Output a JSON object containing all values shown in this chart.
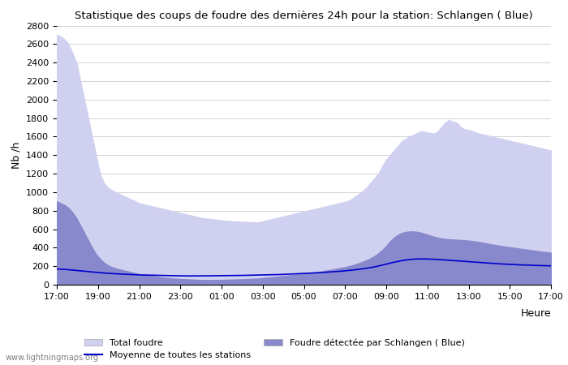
{
  "title": "Statistique des coups de foudre des dernières 24h pour la station: Schlangen ( Blue)",
  "ylabel": "Nb /h",
  "xlabel": "Heure",
  "watermark": "www.lightningmaps.org",
  "legend_total": "Total foudre",
  "legend_mean": "Moyenne de toutes les stations",
  "legend_station": "Foudre détectée par Schlangen ( Blue)",
  "color_total": "#d0d0f0",
  "color_station": "#8888cc",
  "color_mean": "#0000cc",
  "ylim": [
    0,
    2800
  ],
  "yticks": [
    0,
    200,
    400,
    600,
    800,
    1000,
    1200,
    1400,
    1600,
    1800,
    2000,
    2200,
    2400,
    2600,
    2800
  ],
  "xtick_labels": [
    "17:00",
    "19:00",
    "21:00",
    "23:00",
    "01:00",
    "03:00",
    "05:00",
    "07:00",
    "09:00",
    "11:00",
    "13:00",
    "15:00",
    "17:00"
  ],
  "total_foudre": [
    2700,
    2680,
    2650,
    2600,
    2500,
    2400,
    2200,
    2000,
    1800,
    1600,
    1400,
    1200,
    1100,
    1050,
    1020,
    1000,
    980,
    960,
    940,
    920,
    900,
    880,
    870,
    860,
    850,
    840,
    830,
    820,
    810,
    800,
    790,
    780,
    770,
    760,
    750,
    740,
    730,
    720,
    715,
    710,
    705,
    700,
    695,
    690,
    688,
    685,
    683,
    680,
    678,
    675,
    673,
    670,
    680,
    690,
    700,
    710,
    720,
    730,
    740,
    750,
    760,
    770,
    780,
    790,
    800,
    810,
    820,
    830,
    840,
    850,
    860,
    870,
    880,
    890,
    900,
    920,
    950,
    980,
    1010,
    1050,
    1100,
    1150,
    1200,
    1280,
    1350,
    1400,
    1450,
    1500,
    1550,
    1580,
    1600,
    1620,
    1640,
    1660,
    1650,
    1640,
    1630,
    1650,
    1700,
    1750,
    1780,
    1760,
    1750,
    1700,
    1680,
    1670,
    1660,
    1640,
    1630,
    1620,
    1610,
    1600,
    1590,
    1580,
    1570,
    1560,
    1550,
    1540,
    1530,
    1520,
    1510,
    1500,
    1490,
    1480,
    1470,
    1460,
    1450
  ],
  "station_foudre": [
    900,
    880,
    860,
    830,
    780,
    720,
    640,
    560,
    480,
    400,
    330,
    280,
    240,
    210,
    190,
    175,
    165,
    155,
    145,
    135,
    125,
    115,
    108,
    102,
    96,
    90,
    84,
    78,
    74,
    70,
    66,
    63,
    60,
    58,
    56,
    54,
    52,
    51,
    50,
    50,
    50,
    51,
    52,
    53,
    54,
    55,
    57,
    58,
    60,
    62,
    64,
    66,
    70,
    74,
    78,
    82,
    86,
    90,
    95,
    100,
    105,
    110,
    115,
    120,
    125,
    130,
    135,
    140,
    148,
    155,
    162,
    170,
    178,
    186,
    195,
    205,
    218,
    232,
    248,
    265,
    285,
    310,
    340,
    375,
    420,
    470,
    510,
    540,
    560,
    570,
    575,
    575,
    570,
    560,
    548,
    535,
    520,
    510,
    500,
    495,
    490,
    488,
    485,
    483,
    480,
    476,
    471,
    465,
    458,
    450,
    442,
    434,
    427,
    420,
    414,
    408,
    402,
    396,
    390,
    384,
    378,
    372,
    366,
    360,
    355,
    350,
    346
  ],
  "mean_line": [
    170,
    168,
    165,
    162,
    158,
    154,
    150,
    146,
    142,
    138,
    134,
    130,
    127,
    124,
    121,
    118,
    116,
    114,
    112,
    110,
    108,
    106,
    105,
    104,
    103,
    102,
    101,
    100,
    99,
    98,
    97,
    96,
    96,
    95,
    95,
    95,
    95,
    95,
    96,
    96,
    97,
    97,
    98,
    98,
    99,
    99,
    100,
    100,
    101,
    102,
    103,
    104,
    105,
    106,
    107,
    108,
    109,
    110,
    112,
    114,
    116,
    118,
    120,
    122,
    124,
    126,
    128,
    130,
    133,
    136,
    139,
    142,
    145,
    148,
    152,
    156,
    161,
    166,
    172,
    178,
    185,
    193,
    202,
    212,
    222,
    233,
    243,
    252,
    260,
    267,
    272,
    276,
    278,
    279,
    278,
    277,
    275,
    273,
    270,
    267,
    264,
    261,
    258,
    255,
    252,
    249,
    246,
    243,
    240,
    237,
    234,
    231,
    228,
    225,
    223,
    221,
    219,
    217,
    215,
    213,
    212,
    210,
    208,
    207,
    206,
    205,
    204
  ]
}
